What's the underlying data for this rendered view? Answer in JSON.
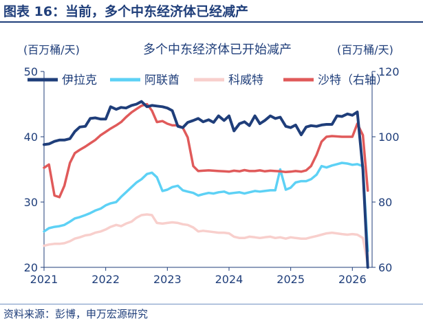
{
  "figure_caption": "图表 16：当前，多个中东经济体已经减产",
  "source_note": "资料来源：彭博，申万宏源研究",
  "chart_data": {
    "type": "line",
    "title": "多个中东经济体已开始减产",
    "ylabel_left": "(百万桶/天)",
    "ylabel_right": "(百万桶/天)",
    "left_ylim": [
      20,
      50
    ],
    "left_yticks": [
      20,
      30,
      40,
      50
    ],
    "right_ylim": [
      60,
      120
    ],
    "right_yticks": [
      60,
      80,
      100,
      120
    ],
    "xlim": [
      2021.0,
      2026.32
    ],
    "xticks": [
      "2021",
      "2022",
      "2023",
      "2024",
      "2025",
      "2026"
    ],
    "grid": false,
    "legend": "top",
    "series": [
      {
        "name": "伊拉克",
        "axis": "left",
        "color": "#1f3e7a",
        "x": [
          2021.0,
          2021.08,
          2021.17,
          2021.25,
          2021.33,
          2021.42,
          2021.5,
          2021.58,
          2021.67,
          2021.75,
          2021.83,
          2021.92,
          2022.0,
          2022.08,
          2022.17,
          2022.25,
          2022.33,
          2022.42,
          2022.5,
          2022.58,
          2022.67,
          2022.75,
          2022.83,
          2022.92,
          2023.0,
          2023.08,
          2023.17,
          2023.25,
          2023.33,
          2023.42,
          2023.5,
          2023.58,
          2023.67,
          2023.75,
          2023.83,
          2023.92,
          2024.0,
          2024.08,
          2024.17,
          2024.25,
          2024.33,
          2024.42,
          2024.5,
          2024.58,
          2024.67,
          2024.75,
          2024.83,
          2024.92,
          2025.0,
          2025.08,
          2025.17,
          2025.25,
          2025.33,
          2025.42,
          2025.5,
          2025.58,
          2025.67,
          2025.75,
          2025.83,
          2025.92,
          2026.0,
          2026.08,
          2026.17,
          2026.25
        ],
        "values": [
          38.8,
          38.9,
          39.3,
          39.5,
          39.5,
          39.7,
          40.8,
          41.5,
          41.6,
          42.8,
          42.9,
          42.7,
          42.7,
          44.6,
          44.2,
          44.5,
          44.4,
          44.8,
          45.0,
          45.4,
          44.6,
          44.8,
          44.7,
          44.6,
          44.4,
          44.0,
          41.6,
          41.4,
          42.2,
          42.5,
          42.8,
          42.3,
          42.6,
          42.2,
          43.2,
          42.5,
          43.2,
          40.9,
          42.0,
          42.3,
          41.7,
          43.2,
          42.0,
          42.5,
          43.2,
          42.8,
          43.0,
          41.6,
          41.4,
          41.8,
          40.3,
          41.5,
          41.7,
          41.6,
          41.8,
          41.9,
          41.9,
          43.2,
          43.1,
          43.5,
          43.3,
          43.8,
          35.0,
          20.0
        ]
      },
      {
        "name": "阿联酋",
        "axis": "left",
        "color": "#5dd1f5",
        "x": [
          2021.0,
          2021.08,
          2021.17,
          2021.25,
          2021.33,
          2021.42,
          2021.5,
          2021.58,
          2021.67,
          2021.75,
          2021.83,
          2021.92,
          2022.0,
          2022.08,
          2022.17,
          2022.25,
          2022.33,
          2022.42,
          2022.5,
          2022.58,
          2022.67,
          2022.75,
          2022.83,
          2022.92,
          2023.0,
          2023.08,
          2023.17,
          2023.25,
          2023.33,
          2023.42,
          2023.5,
          2023.58,
          2023.67,
          2023.75,
          2023.83,
          2023.92,
          2024.0,
          2024.08,
          2024.17,
          2024.25,
          2024.33,
          2024.42,
          2024.5,
          2024.58,
          2024.67,
          2024.75,
          2024.83,
          2024.92,
          2025.0,
          2025.08,
          2025.17,
          2025.25,
          2025.33,
          2025.42,
          2025.5,
          2025.58,
          2025.67,
          2025.75,
          2025.83,
          2025.92,
          2026.0,
          2026.08,
          2026.17,
          2026.25
        ],
        "values": [
          25.5,
          26.0,
          26.2,
          26.3,
          26.5,
          27.0,
          27.5,
          27.7,
          28.0,
          28.3,
          28.7,
          29.0,
          29.5,
          29.8,
          30.0,
          30.8,
          31.5,
          32.3,
          33.0,
          33.5,
          34.3,
          34.5,
          33.8,
          31.7,
          31.9,
          32.3,
          32.5,
          31.8,
          31.6,
          31.4,
          31.0,
          31.2,
          31.4,
          31.3,
          31.5,
          31.6,
          31.3,
          31.4,
          31.5,
          31.3,
          31.5,
          31.7,
          31.6,
          31.7,
          31.8,
          31.8,
          35.0,
          31.9,
          32.2,
          33.0,
          33.2,
          33.2,
          33.5,
          34.2,
          35.5,
          35.3,
          35.6,
          35.8,
          36.0,
          35.9,
          35.7,
          35.8,
          35.5,
          22.5
        ]
      },
      {
        "name": "科威特",
        "axis": "left",
        "color": "#f8cfcc",
        "x": [
          2021.0,
          2021.08,
          2021.17,
          2021.25,
          2021.33,
          2021.42,
          2021.5,
          2021.58,
          2021.67,
          2021.75,
          2021.83,
          2021.92,
          2022.0,
          2022.08,
          2022.17,
          2022.25,
          2022.33,
          2022.42,
          2022.5,
          2022.58,
          2022.67,
          2022.75,
          2022.83,
          2022.92,
          2023.0,
          2023.08,
          2023.17,
          2023.25,
          2023.33,
          2023.42,
          2023.5,
          2023.58,
          2023.67,
          2023.75,
          2023.83,
          2023.92,
          2024.0,
          2024.08,
          2024.17,
          2024.25,
          2024.33,
          2024.42,
          2024.5,
          2024.58,
          2024.67,
          2024.75,
          2024.83,
          2024.92,
          2025.0,
          2025.08,
          2025.17,
          2025.25,
          2025.33,
          2025.42,
          2025.5,
          2025.58,
          2025.67,
          2025.75,
          2025.83,
          2025.92,
          2026.0,
          2026.08,
          2026.17,
          2026.25
        ],
        "values": [
          23.3,
          23.5,
          23.6,
          23.6,
          23.7,
          24.0,
          24.4,
          24.6,
          24.9,
          25.0,
          25.3,
          25.5,
          25.8,
          26.2,
          26.5,
          26.3,
          26.7,
          27.0,
          27.6,
          28.0,
          28.1,
          28.0,
          26.8,
          26.7,
          26.8,
          26.9,
          26.8,
          26.6,
          26.5,
          26.1,
          25.5,
          25.6,
          25.5,
          25.4,
          25.3,
          25.3,
          25.2,
          24.7,
          24.5,
          24.5,
          24.7,
          24.6,
          24.5,
          24.6,
          24.7,
          24.5,
          24.6,
          24.4,
          24.6,
          24.5,
          24.4,
          24.4,
          24.6,
          24.8,
          25.0,
          25.2,
          25.3,
          25.2,
          25.1,
          25.0,
          25.1,
          25.0,
          24.5,
          20.5
        ]
      },
      {
        "name": "沙特（右轴）",
        "axis": "right",
        "color": "#e05a5a",
        "x": [
          2021.0,
          2021.08,
          2021.17,
          2021.25,
          2021.33,
          2021.42,
          2021.5,
          2021.58,
          2021.67,
          2021.75,
          2021.83,
          2021.92,
          2022.0,
          2022.08,
          2022.17,
          2022.25,
          2022.33,
          2022.42,
          2022.5,
          2022.58,
          2022.67,
          2022.75,
          2022.83,
          2022.92,
          2023.0,
          2023.08,
          2023.17,
          2023.25,
          2023.33,
          2023.42,
          2023.5,
          2023.58,
          2023.67,
          2023.75,
          2023.83,
          2023.92,
          2024.0,
          2024.08,
          2024.17,
          2024.25,
          2024.33,
          2024.42,
          2024.5,
          2024.58,
          2024.67,
          2024.75,
          2024.83,
          2024.92,
          2025.0,
          2025.08,
          2025.17,
          2025.25,
          2025.33,
          2025.42,
          2025.5,
          2025.58,
          2025.67,
          2025.75,
          2025.83,
          2025.92,
          2026.0,
          2026.08,
          2026.17,
          2026.25
        ],
        "values": [
          90.5,
          91.5,
          82.0,
          81.5,
          85.0,
          92.0,
          95.0,
          96.0,
          97.0,
          98.0,
          99.0,
          100.5,
          101.5,
          102.5,
          103.5,
          104.5,
          106.0,
          107.5,
          108.5,
          109.5,
          110.0,
          108.0,
          104.5,
          104.8,
          104.0,
          103.5,
          103.5,
          102.8,
          99.8,
          91.0,
          89.5,
          89.6,
          89.7,
          89.6,
          89.5,
          89.4,
          89.3,
          89.6,
          89.4,
          89.8,
          89.5,
          89.5,
          89.7,
          89.4,
          89.6,
          89.5,
          89.4,
          89.2,
          89.3,
          89.5,
          89.3,
          89.7,
          91.0,
          94.5,
          98.5,
          100.0,
          100.2,
          100.1,
          100.0,
          100.0,
          100.0,
          104.0,
          100.5,
          83.5
        ]
      }
    ]
  }
}
